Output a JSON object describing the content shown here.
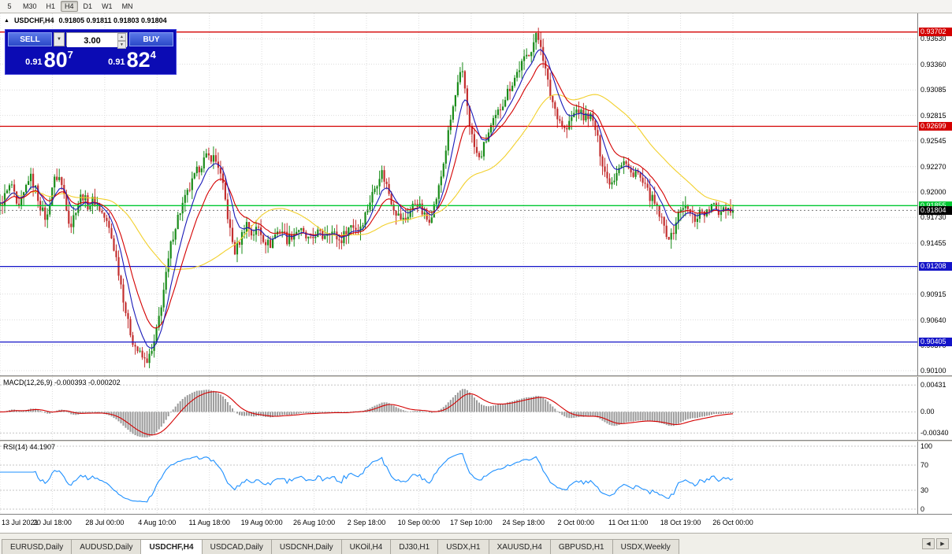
{
  "toolbar": {
    "timeframes": [
      "5",
      "M30",
      "H1",
      "H4",
      "D1",
      "W1",
      "MN"
    ],
    "active": "H4"
  },
  "chart": {
    "title": "USDCHF,H4",
    "ohlc": "0.91805 0.91811 0.91803 0.91804"
  },
  "icons": {
    "collapse": "▲",
    "dropdown": "▼",
    "spin_up": "▲",
    "spin_down": "▼",
    "tab_prev": "◀",
    "tab_next": "▶"
  },
  "trade_panel": {
    "sell_label": "SELL",
    "buy_label": "BUY",
    "volume": "3.00",
    "sell_price_prefix": "0.91",
    "sell_price_big": "80",
    "sell_price_sup": "7",
    "buy_price_prefix": "0.91",
    "buy_price_big": "82",
    "buy_price_sup": "4"
  },
  "tabs": {
    "items": [
      "EURUSD,Daily",
      "AUDUSD,Daily",
      "USDCHF,H4",
      "USDCAD,Daily",
      "USDCNH,Daily",
      "UKOil,H4",
      "DJ30,H1",
      "USDX,H1",
      "XAUUSD,H4",
      "GBPUSD,H1",
      "USDX,Weekly"
    ],
    "active": "USDCHF,H4"
  },
  "chart_data": {
    "type": "candlestick",
    "symbol": "USDCHF",
    "timeframe": "H4",
    "x_labels": [
      "13 Jul 2021",
      "20 Jul 18:00",
      "28 Jul 00:00",
      "4 Aug 10:00",
      "11 Aug 18:00",
      "19 Aug 00:00",
      "26 Aug 10:00",
      "2 Sep 18:00",
      "10 Sep 00:00",
      "17 Sep 10:00",
      "24 Sep 18:00",
      "2 Oct 00:00",
      "11 Oct 11:00",
      "18 Oct 19:00",
      "26 Oct 00:00"
    ],
    "y_ticks": {
      "labels": [
        "0.93630",
        "0.93360",
        "0.93085",
        "0.92815",
        "0.92545",
        "0.92270",
        "0.92000",
        "0.91730",
        "0.91455",
        "0.91185",
        "0.90915",
        "0.90640",
        "0.90370",
        "0.90100"
      ],
      "values": [
        0.9363,
        0.9336,
        0.93085,
        0.92815,
        0.92545,
        0.9227,
        0.92,
        0.9173,
        0.91455,
        0.91185,
        0.90915,
        0.9064,
        0.9037,
        0.901
      ]
    },
    "price_range": [
      0.9005,
      0.939
    ],
    "candles_count": 310,
    "up_color": "#1a8c1a",
    "down_color": "#c32f2f",
    "ma": [
      {
        "name": "slow-ma",
        "type": "sma",
        "period": 45,
        "color": "#f2d02c"
      },
      {
        "name": "medium-ma",
        "type": "ema",
        "period": 16,
        "color": "#d40000"
      },
      {
        "name": "fast-ma",
        "type": "ema",
        "period": 8,
        "color": "#1a1ab8"
      }
    ],
    "hlines": [
      {
        "value": 0.93702,
        "label": "0.93702",
        "color": "#d40000"
      },
      {
        "value": 0.92699,
        "label": "0.92699",
        "color": "#d40000"
      },
      {
        "value": 0.91855,
        "label": "0.91855",
        "color": "#00c832"
      },
      {
        "value": 0.91804,
        "label": "0.91804",
        "color": "#000000",
        "style": "price"
      },
      {
        "value": 0.91208,
        "label": "0.91208",
        "color": "#1414c8"
      },
      {
        "value": 0.90405,
        "label": "0.90405",
        "color": "#1414c8"
      }
    ],
    "macd": {
      "label": "MACD(12,26,9) -0.000393 -0.000202",
      "scale_labels": [
        "0.00431",
        "0.00",
        "-0.00340"
      ],
      "scale_values": [
        0.00431,
        0,
        -0.0034
      ],
      "range": [
        -0.0045,
        0.0056
      ],
      "colors": {
        "histogram": "#9a9a9a",
        "signal": "#d40000"
      }
    },
    "rsi": {
      "label": "RSI(14) 44.1907",
      "scale_labels": [
        "100",
        "70",
        "30",
        "0"
      ],
      "scale_values": [
        100,
        70,
        30,
        0
      ],
      "color": "#1e90ff"
    },
    "price_path": [
      [
        0.0,
        0.9185
      ],
      [
        0.008,
        0.9198
      ],
      [
        0.016,
        0.9208
      ],
      [
        0.024,
        0.9178
      ],
      [
        0.032,
        0.9196
      ],
      [
        0.04,
        0.9218
      ],
      [
        0.048,
        0.9205
      ],
      [
        0.056,
        0.9182
      ],
      [
        0.064,
        0.917
      ],
      [
        0.072,
        0.921
      ],
      [
        0.08,
        0.9218
      ],
      [
        0.088,
        0.9196
      ],
      [
        0.096,
        0.9162
      ],
      [
        0.104,
        0.9184
      ],
      [
        0.112,
        0.9198
      ],
      [
        0.12,
        0.9186
      ],
      [
        0.128,
        0.9192
      ],
      [
        0.136,
        0.9182
      ],
      [
        0.143,
        0.9172
      ],
      [
        0.15,
        0.9158
      ],
      [
        0.158,
        0.9132
      ],
      [
        0.166,
        0.9098
      ],
      [
        0.174,
        0.9062
      ],
      [
        0.182,
        0.904
      ],
      [
        0.19,
        0.9028
      ],
      [
        0.198,
        0.902
      ],
      [
        0.206,
        0.9026
      ],
      [
        0.212,
        0.9044
      ],
      [
        0.218,
        0.9072
      ],
      [
        0.226,
        0.9108
      ],
      [
        0.234,
        0.9148
      ],
      [
        0.242,
        0.9172
      ],
      [
        0.25,
        0.9188
      ],
      [
        0.26,
        0.9206
      ],
      [
        0.27,
        0.9224
      ],
      [
        0.28,
        0.9236
      ],
      [
        0.29,
        0.9238
      ],
      [
        0.298,
        0.9228
      ],
      [
        0.306,
        0.9198
      ],
      [
        0.314,
        0.9158
      ],
      [
        0.32,
        0.9136
      ],
      [
        0.328,
        0.915
      ],
      [
        0.336,
        0.9168
      ],
      [
        0.344,
        0.9154
      ],
      [
        0.352,
        0.9163
      ],
      [
        0.36,
        0.915
      ],
      [
        0.368,
        0.9143
      ],
      [
        0.376,
        0.9156
      ],
      [
        0.384,
        0.9161
      ],
      [
        0.392,
        0.9149
      ],
      [
        0.4,
        0.9156
      ],
      [
        0.408,
        0.9161
      ],
      [
        0.416,
        0.9152
      ],
      [
        0.424,
        0.9147
      ],
      [
        0.432,
        0.9158
      ],
      [
        0.44,
        0.9152
      ],
      [
        0.448,
        0.9161
      ],
      [
        0.456,
        0.9155
      ],
      [
        0.464,
        0.9147
      ],
      [
        0.472,
        0.9158
      ],
      [
        0.48,
        0.9166
      ],
      [
        0.488,
        0.9159
      ],
      [
        0.496,
        0.9171
      ],
      [
        0.504,
        0.9189
      ],
      [
        0.512,
        0.9206
      ],
      [
        0.52,
        0.9223
      ],
      [
        0.528,
        0.9206
      ],
      [
        0.536,
        0.9186
      ],
      [
        0.544,
        0.9174
      ],
      [
        0.552,
        0.9169
      ],
      [
        0.56,
        0.9181
      ],
      [
        0.568,
        0.9191
      ],
      [
        0.576,
        0.9178
      ],
      [
        0.584,
        0.9169
      ],
      [
        0.592,
        0.9184
      ],
      [
        0.6,
        0.9208
      ],
      [
        0.608,
        0.9244
      ],
      [
        0.616,
        0.9282
      ],
      [
        0.624,
        0.9312
      ],
      [
        0.63,
        0.9329
      ],
      [
        0.636,
        0.9302
      ],
      [
        0.642,
        0.9266
      ],
      [
        0.648,
        0.9245
      ],
      [
        0.654,
        0.9234
      ],
      [
        0.66,
        0.9248
      ],
      [
        0.668,
        0.9266
      ],
      [
        0.676,
        0.9278
      ],
      [
        0.684,
        0.9292
      ],
      [
        0.692,
        0.9306
      ],
      [
        0.7,
        0.9318
      ],
      [
        0.708,
        0.9331
      ],
      [
        0.716,
        0.9341
      ],
      [
        0.724,
        0.9352
      ],
      [
        0.732,
        0.9366
      ],
      [
        0.738,
        0.9358
      ],
      [
        0.744,
        0.933
      ],
      [
        0.75,
        0.9306
      ],
      [
        0.756,
        0.9291
      ],
      [
        0.764,
        0.9276
      ],
      [
        0.772,
        0.9264
      ],
      [
        0.78,
        0.9279
      ],
      [
        0.788,
        0.9289
      ],
      [
        0.796,
        0.9279
      ],
      [
        0.804,
        0.9283
      ],
      [
        0.812,
        0.9268
      ],
      [
        0.82,
        0.9238
      ],
      [
        0.828,
        0.9214
      ],
      [
        0.836,
        0.9211
      ],
      [
        0.844,
        0.9229
      ],
      [
        0.852,
        0.9233
      ],
      [
        0.86,
        0.9219
      ],
      [
        0.868,
        0.9223
      ],
      [
        0.876,
        0.921
      ],
      [
        0.884,
        0.9199
      ],
      [
        0.892,
        0.9189
      ],
      [
        0.9,
        0.9175
      ],
      [
        0.908,
        0.9158
      ],
      [
        0.916,
        0.9151
      ],
      [
        0.924,
        0.9174
      ],
      [
        0.932,
        0.9186
      ],
      [
        0.94,
        0.9179
      ],
      [
        0.948,
        0.9171
      ],
      [
        0.956,
        0.9181
      ],
      [
        0.964,
        0.9177
      ],
      [
        0.972,
        0.9186
      ],
      [
        0.98,
        0.9178
      ],
      [
        0.988,
        0.9186
      ],
      [
        1.0,
        0.918
      ]
    ]
  }
}
